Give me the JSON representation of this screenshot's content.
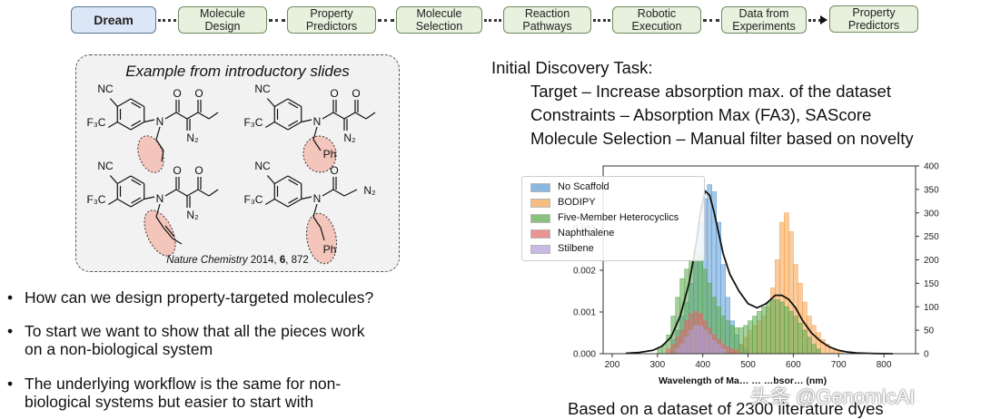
{
  "workflow": {
    "steps": [
      "Dream",
      "Molecule\nDesign",
      "Property\nPredictors",
      "Molecule\nSelection",
      "Reaction\nPathways",
      "Robotic\nExecution",
      "Data from\nExperiments",
      "Property\nPredictors"
    ]
  },
  "example_box": {
    "title": "Example from introductory slides",
    "citation_journal": "Nature Chemistry",
    "citation_rest": " 2014, ",
    "citation_volume": "6",
    "citation_pages": ", 872",
    "atom_labels": {
      "nc": "NC",
      "cf3": "F₃C",
      "n": "N",
      "n2": "N₂",
      "ph": "Ph"
    }
  },
  "bullets": [
    "How can we design property-targeted molecules?",
    " To start we want to show that all the pieces work\non a non-biological system",
    "The underlying workflow is the same for non-\nbiological systems but easier to start with"
  ],
  "task": {
    "heading": "Initial Discovery Task:",
    "target": "Target – Increase absorption max. of the dataset",
    "constraints": "Constraints – Absorption Max (FA3), SAScore",
    "selection": "Molecule Selection – Manual filter based on novelty"
  },
  "footer": {
    "dataset_note": "Based on a dataset of 2300 literature dyes",
    "watermark": "头条 @GenomicAI"
  },
  "colors": {
    "no_scaffold": "#5b9bd5",
    "bodipy": "#f5a04a",
    "five_member": "#59a84b",
    "naphthalene": "#e06666",
    "stilbene": "#b39ddb",
    "workflow_fill": "#e7f1de",
    "dream_fill": "#dbe7f7",
    "highlight": "#f4b6a8"
  },
  "chart_data": {
    "type": "histogram",
    "title": "",
    "xlabel": "Wavelength of Ma… … …bsor… (nm)",
    "ylabel": "",
    "xlim": [
      180,
      870
    ],
    "x_ticks": [
      200,
      300,
      400,
      500,
      600,
      700,
      800
    ],
    "y_left_lim": [
      0,
      0.0045
    ],
    "y_left_ticks": [
      "0.000",
      "0.001",
      "0.002",
      "0.003"
    ],
    "y_right_lim": [
      0,
      400
    ],
    "y_right_ticks": [
      "0",
      "50",
      "100",
      "150",
      "200",
      "250",
      "300",
      "350",
      "400"
    ],
    "bin_width": 10,
    "legend_position": "upper-left",
    "series": [
      {
        "name": "No Scaffold",
        "color": "#5b9bd5",
        "bins": [
          [
            330,
            30
          ],
          [
            340,
            50
          ],
          [
            350,
            80
          ],
          [
            360,
            110
          ],
          [
            370,
            150
          ],
          [
            380,
            200
          ],
          [
            390,
            280
          ],
          [
            400,
            330
          ],
          [
            410,
            360
          ],
          [
            420,
            345
          ],
          [
            430,
            280
          ],
          [
            440,
            190
          ],
          [
            450,
            120
          ],
          [
            460,
            70
          ],
          [
            470,
            40
          ],
          [
            480,
            20
          ],
          [
            490,
            10
          ]
        ]
      },
      {
        "name": "BODIPY",
        "color": "#f5a04a",
        "bins": [
          [
            470,
            10
          ],
          [
            480,
            20
          ],
          [
            490,
            35
          ],
          [
            500,
            50
          ],
          [
            510,
            60
          ],
          [
            520,
            70
          ],
          [
            530,
            80
          ],
          [
            540,
            100
          ],
          [
            550,
            140
          ],
          [
            560,
            200
          ],
          [
            570,
            280
          ],
          [
            580,
            300
          ],
          [
            590,
            260
          ],
          [
            600,
            190
          ],
          [
            610,
            150
          ],
          [
            620,
            110
          ],
          [
            630,
            80
          ],
          [
            640,
            60
          ],
          [
            650,
            45
          ],
          [
            660,
            30
          ],
          [
            670,
            20
          ],
          [
            680,
            12
          ],
          [
            690,
            8
          ],
          [
            700,
            5
          ]
        ]
      },
      {
        "name": "Five-Member Heterocyclics",
        "color": "#59a84b",
        "bins": [
          [
            300,
            10
          ],
          [
            310,
            20
          ],
          [
            320,
            40
          ],
          [
            330,
            80
          ],
          [
            340,
            120
          ],
          [
            350,
            160
          ],
          [
            360,
            180
          ],
          [
            370,
            200
          ],
          [
            380,
            220
          ],
          [
            390,
            210
          ],
          [
            400,
            180
          ],
          [
            410,
            150
          ],
          [
            420,
            120
          ],
          [
            430,
            100
          ],
          [
            440,
            80
          ],
          [
            450,
            70
          ],
          [
            460,
            60
          ],
          [
            470,
            55
          ],
          [
            480,
            55
          ],
          [
            490,
            60
          ],
          [
            500,
            70
          ],
          [
            510,
            80
          ],
          [
            520,
            90
          ],
          [
            530,
            100
          ],
          [
            540,
            110
          ],
          [
            550,
            115
          ],
          [
            560,
            115
          ],
          [
            570,
            110
          ],
          [
            580,
            100
          ],
          [
            590,
            90
          ],
          [
            600,
            80
          ],
          [
            610,
            65
          ],
          [
            620,
            50
          ],
          [
            630,
            35
          ],
          [
            640,
            20
          ],
          [
            650,
            10
          ]
        ]
      },
      {
        "name": "Naphthalene",
        "color": "#e06666",
        "bins": [
          [
            320,
            10
          ],
          [
            330,
            20
          ],
          [
            340,
            35
          ],
          [
            350,
            50
          ],
          [
            360,
            70
          ],
          [
            370,
            85
          ],
          [
            380,
            90
          ],
          [
            390,
            85
          ],
          [
            400,
            70
          ],
          [
            410,
            55
          ],
          [
            420,
            40
          ],
          [
            430,
            30
          ],
          [
            440,
            20
          ],
          [
            450,
            15
          ],
          [
            460,
            10
          ],
          [
            470,
            5
          ]
        ]
      },
      {
        "name": "Stilbene",
        "color": "#b39ddb",
        "bins": [
          [
            340,
            10
          ],
          [
            350,
            20
          ],
          [
            360,
            35
          ],
          [
            370,
            50
          ],
          [
            380,
            60
          ],
          [
            390,
            58
          ],
          [
            400,
            50
          ],
          [
            410,
            40
          ],
          [
            420,
            28
          ],
          [
            430,
            18
          ],
          [
            440,
            10
          ]
        ]
      }
    ],
    "kde": {
      "x": [
        230,
        260,
        290,
        310,
        330,
        350,
        370,
        385,
        395,
        405,
        415,
        425,
        435,
        445,
        460,
        480,
        500,
        520,
        540,
        560,
        575,
        590,
        605,
        620,
        640,
        660,
        680,
        700,
        720,
        740,
        760,
        780,
        820
      ],
      "y": [
        1e-05,
        3e-05,
        8e-05,
        0.00018,
        0.0004,
        0.0009,
        0.0017,
        0.0026,
        0.0034,
        0.0039,
        0.0038,
        0.0034,
        0.0029,
        0.0024,
        0.0019,
        0.0015,
        0.0012,
        0.0011,
        0.0012,
        0.0014,
        0.0014,
        0.0013,
        0.0011,
        0.0008,
        0.0005,
        0.0003,
        0.00016,
        8e-05,
        4e-05,
        2e-05,
        1e-05,
        5e-06,
        0
      ]
    }
  }
}
